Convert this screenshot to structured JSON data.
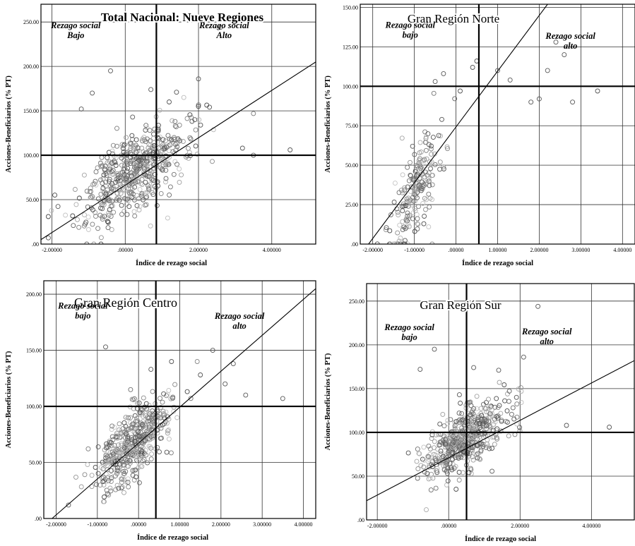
{
  "colors": {
    "frame": "#000000",
    "grid": "#333333",
    "point": "#555555",
    "background": "#ffffff"
  },
  "chart_data": [
    {
      "type": "scatter",
      "title": "Total Nacional: Nueve Regiones",
      "xlabel": "Índice de rezago social",
      "ylabel": "Acciones-Beneficiarios (% PT)",
      "xlim": [
        -2.3,
        5.2
      ],
      "ylim": [
        0,
        270
      ],
      "xticks": [
        -2,
        0,
        2,
        4
      ],
      "xtick_labels": [
        "-2.00000",
        ".00000",
        "2.00000",
        "4.00000"
      ],
      "yticks": [
        0,
        50,
        100,
        150,
        200,
        250
      ],
      "ytick_labels": [
        ".00",
        "50.00",
        "100.00",
        "150.00",
        "200.00",
        "250.00"
      ],
      "vline_x": 0.85,
      "hline_y": 100,
      "fit_line": {
        "x": [
          -2.3,
          5.2
        ],
        "y": [
          5,
          205
        ]
      },
      "annotations": [
        {
          "line1": "Rezago social",
          "line2": "Bajo",
          "x": -1.35,
          "y": 243
        },
        {
          "line1": "Rezago social",
          "line2": "Alto",
          "x": 2.7,
          "y": 243
        }
      ],
      "points": [
        [
          -0.9,
          170
        ],
        [
          -0.4,
          195
        ],
        [
          2.0,
          186
        ],
        [
          2.6,
          244
        ],
        [
          0.7,
          174
        ],
        [
          -1.2,
          152
        ],
        [
          1.4,
          171
        ],
        [
          1.9,
          140
        ],
        [
          3.5,
          100
        ],
        [
          4.5,
          106
        ],
        [
          3.2,
          108
        ],
        [
          -2.1,
          7
        ],
        [
          0.2,
          143
        ],
        [
          1.2,
          160
        ]
      ],
      "cloud": {
        "n": 560,
        "x_center": 0.2,
        "x_spread": 1.35,
        "y_spread": 22,
        "x_min": -2.1,
        "x_max": 3.5,
        "y_min": 0,
        "y_max": 165,
        "slope": 27,
        "intercept": 75
      }
    },
    {
      "type": "scatter",
      "title": "Gran Región Norte",
      "xlabel": "Índice de rezago social",
      "ylabel": "Acciones-Beneficiarios (% PT)",
      "xlim": [
        -2.3,
        4.3
      ],
      "ylim": [
        0,
        152
      ],
      "xticks": [
        -2,
        -1,
        0,
        1,
        2,
        3,
        4
      ],
      "xtick_labels": [
        "-2.00000",
        "-1.00000",
        ".00000",
        "1.00000",
        "2.00000",
        "3.00000",
        "4.00000"
      ],
      "yticks": [
        0,
        25,
        50,
        75,
        100,
        125,
        150
      ],
      "ytick_labels": [
        ".00",
        "25.00",
        "50.00",
        "75.00",
        "100.00",
        "125.00",
        "150.00"
      ],
      "vline_x": 0.55,
      "hline_y": 100,
      "fit_line": {
        "x": [
          -2.1,
          2.2
        ],
        "y": [
          0,
          152
        ]
      },
      "annotations": [
        {
          "line1": "Rezago social",
          "line2": "bajo",
          "x": -1.1,
          "y": 137
        },
        {
          "line1": "Rezago social",
          "line2": "alto",
          "x": 2.75,
          "y": 130
        }
      ],
      "points": [
        [
          0.5,
          116
        ],
        [
          0.4,
          112
        ],
        [
          -0.3,
          108
        ],
        [
          1.8,
          90
        ],
        [
          2.0,
          92
        ],
        [
          2.4,
          128
        ],
        [
          2.6,
          120
        ],
        [
          2.8,
          90
        ],
        [
          3.4,
          97
        ],
        [
          1.0,
          110
        ],
        [
          -0.5,
          103
        ],
        [
          0.1,
          97
        ],
        [
          1.3,
          104
        ],
        [
          2.2,
          110
        ]
      ],
      "cloud": {
        "n": 210,
        "x_center": -0.95,
        "x_spread": 0.55,
        "y_spread": 14,
        "x_min": -2.0,
        "x_max": 1.2,
        "y_min": 0,
        "y_max": 115,
        "slope": 38,
        "intercept": 70
      }
    },
    {
      "type": "scatter",
      "title": "Gran Región  Centro",
      "xlabel": "Índice de rezago social",
      "ylabel": "Acciones-Beneficiarios (% PT)",
      "xlim": [
        -2.3,
        4.3
      ],
      "ylim": [
        0,
        212
      ],
      "xticks": [
        -2,
        -1,
        0,
        1,
        2,
        3,
        4
      ],
      "xtick_labels": [
        "-2.00000",
        "-1.00000",
        ".00000",
        "1.00000",
        "2.00000",
        "3.00000",
        "4.00000"
      ],
      "yticks": [
        0,
        50,
        100,
        150,
        200
      ],
      "ytick_labels": [
        ".00",
        "50.00",
        "100.00",
        "150.00",
        "200.00"
      ],
      "vline_x": 0.42,
      "hline_y": 100,
      "fit_line": {
        "x": [
          -2.1,
          4.3
        ],
        "y": [
          0,
          205
        ]
      },
      "annotations": [
        {
          "line1": "Rezago social",
          "line2": "bajo",
          "x": -1.35,
          "y": 187
        },
        {
          "line1": "Rezago social",
          "line2": "alto",
          "x": 2.45,
          "y": 178
        }
      ],
      "points": [
        [
          -0.8,
          153
        ],
        [
          1.8,
          150
        ],
        [
          2.3,
          138
        ],
        [
          3.5,
          107
        ],
        [
          0.8,
          140
        ],
        [
          2.1,
          120
        ],
        [
          1.5,
          128
        ],
        [
          0.3,
          133
        ],
        [
          -1.7,
          12
        ],
        [
          2.6,
          110
        ]
      ],
      "cloud": {
        "n": 480,
        "x_center": -0.1,
        "x_spread": 0.8,
        "y_spread": 15,
        "x_min": -1.9,
        "x_max": 2.2,
        "y_min": 0,
        "y_max": 140,
        "slope": 33,
        "intercept": 72
      }
    },
    {
      "type": "scatter",
      "title": "Gran Región Sur",
      "xlabel": "Índice de rezago social",
      "ylabel": "Acciones-Beneficiarios (% PT)",
      "xlim": [
        -2.3,
        5.2
      ],
      "ylim": [
        0,
        270
      ],
      "xticks": [
        -2,
        0,
        2,
        4
      ],
      "xtick_labels": [
        "-2.00000",
        ".00000",
        "2.00000",
        "4.00000"
      ],
      "yticks": [
        0,
        50,
        100,
        150,
        200,
        250
      ],
      "ytick_labels": [
        ".00",
        "50.00",
        "100.00",
        "150.00",
        "200.00",
        "250.00"
      ],
      "vline_x": 0.5,
      "hline_y": 100,
      "fit_line": {
        "x": [
          -2.3,
          5.2
        ],
        "y": [
          22,
          182
        ]
      },
      "annotations": [
        {
          "line1": "Rezago social",
          "line2": "bajo",
          "x": -1.1,
          "y": 217
        },
        {
          "line1": "Rezago social",
          "line2": "alto",
          "x": 2.75,
          "y": 212
        }
      ],
      "points": [
        [
          -0.8,
          172
        ],
        [
          2.5,
          244
        ],
        [
          2.1,
          186
        ],
        [
          0.7,
          174
        ],
        [
          -0.4,
          195
        ],
        [
          1.4,
          171
        ],
        [
          4.5,
          106
        ],
        [
          3.3,
          108
        ],
        [
          1.9,
          140
        ],
        [
          0.3,
          143
        ]
      ],
      "cloud": {
        "n": 540,
        "x_center": 0.5,
        "x_spread": 1.05,
        "y_spread": 18,
        "x_min": -1.7,
        "x_max": 3.5,
        "y_min": 0,
        "y_max": 160,
        "slope": 22,
        "intercept": 82
      }
    }
  ]
}
